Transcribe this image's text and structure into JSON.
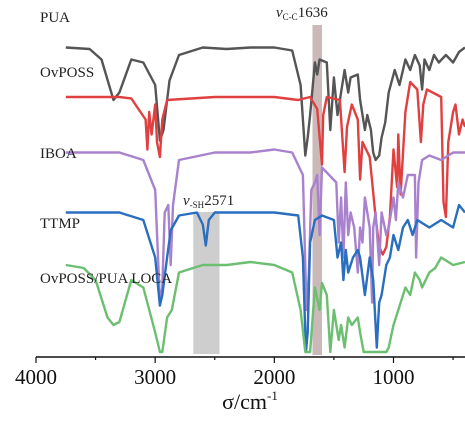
{
  "chart_data": {
    "type": "line",
    "x_axis": {
      "label_symbol": "σ",
      "label_unit": "/cm",
      "label_exponent": "-1",
      "range": [
        4000,
        400
      ],
      "reversed": true,
      "ticks": [
        "4000",
        "3000",
        "2000",
        "1000"
      ],
      "tick_values": [
        4000,
        3000,
        2000,
        1000
      ]
    },
    "y_axis": {
      "visible": false
    },
    "grid": false,
    "stacked": true,
    "series": [
      {
        "name": "PUA",
        "color": "#555555",
        "baseline": 0.95,
        "points": [
          [
            3750,
            0.0
          ],
          [
            3550,
            -0.01
          ],
          [
            3450,
            -0.08
          ],
          [
            3350,
            -0.35
          ],
          [
            3300,
            -0.3
          ],
          [
            3200,
            -0.08
          ],
          [
            3100,
            -0.1
          ],
          [
            3000,
            -0.25
          ],
          [
            2960,
            -0.62
          ],
          [
            2930,
            -0.55
          ],
          [
            2880,
            -0.22
          ],
          [
            2800,
            -0.05
          ],
          [
            2600,
            0.0
          ],
          [
            2400,
            -0.01
          ],
          [
            2200,
            0.0
          ],
          [
            2000,
            0.0
          ],
          [
            1850,
            -0.02
          ],
          [
            1780,
            -0.25
          ],
          [
            1740,
            -0.72
          ],
          [
            1720,
            -0.6
          ],
          [
            1700,
            -0.45
          ],
          [
            1660,
            -0.1
          ],
          [
            1640,
            -0.18
          ],
          [
            1620,
            -0.08
          ],
          [
            1560,
            -0.1
          ],
          [
            1530,
            -0.55
          ],
          [
            1500,
            -0.2
          ],
          [
            1470,
            -0.45
          ],
          [
            1450,
            -0.35
          ],
          [
            1410,
            -0.15
          ],
          [
            1380,
            -0.3
          ],
          [
            1360,
            -0.2
          ],
          [
            1300,
            -0.18
          ],
          [
            1280,
            -0.35
          ],
          [
            1240,
            -0.55
          ],
          [
            1220,
            -0.45
          ],
          [
            1190,
            -0.55
          ],
          [
            1170,
            -0.7
          ],
          [
            1150,
            -0.75
          ],
          [
            1120,
            -0.72
          ],
          [
            1100,
            -0.6
          ],
          [
            1070,
            -0.5
          ],
          [
            1040,
            -0.3
          ],
          [
            990,
            -0.15
          ],
          [
            950,
            -0.25
          ],
          [
            900,
            -0.08
          ],
          [
            860,
            -0.15
          ],
          [
            820,
            -0.05
          ],
          [
            780,
            -0.12
          ],
          [
            760,
            -0.28
          ],
          [
            740,
            -0.08
          ],
          [
            700,
            -0.15
          ],
          [
            660,
            -0.05
          ],
          [
            620,
            -0.1
          ],
          [
            560,
            -0.05
          ],
          [
            500,
            -0.1
          ],
          [
            450,
            -0.03
          ],
          [
            400,
            0.0
          ]
        ]
      },
      {
        "name": "OvPOSS",
        "color": "#e04040",
        "baseline": 0.62,
        "points": [
          [
            3750,
            0.0
          ],
          [
            3300,
            0.0
          ],
          [
            3200,
            -0.01
          ],
          [
            3080,
            -0.15
          ],
          [
            3065,
            -0.35
          ],
          [
            3050,
            -0.1
          ],
          [
            3030,
            -0.25
          ],
          [
            3000,
            -0.05
          ],
          [
            2985,
            -0.3
          ],
          [
            2960,
            -0.4
          ],
          [
            2940,
            -0.15
          ],
          [
            2900,
            -0.02
          ],
          [
            2500,
            0.0
          ],
          [
            2000,
            0.0
          ],
          [
            1800,
            -0.02
          ],
          [
            1700,
            0.0
          ],
          [
            1640,
            -0.08
          ],
          [
            1600,
            -0.45
          ],
          [
            1590,
            -0.12
          ],
          [
            1560,
            0.0
          ],
          [
            1450,
            -0.02
          ],
          [
            1410,
            -0.5
          ],
          [
            1390,
            -0.2
          ],
          [
            1350,
            -0.05
          ],
          [
            1300,
            -0.15
          ],
          [
            1280,
            -0.55
          ],
          [
            1260,
            -0.3
          ],
          [
            1200,
            -0.4
          ],
          [
            1150,
            -0.8
          ],
          [
            1120,
            -1.0
          ],
          [
            1090,
            -1.05
          ],
          [
            1060,
            -1.0
          ],
          [
            1030,
            -0.8
          ],
          [
            1000,
            -0.35
          ],
          [
            970,
            -0.6
          ],
          [
            960,
            -0.25
          ],
          [
            940,
            -0.65
          ],
          [
            900,
            -0.1
          ],
          [
            860,
            0.1
          ],
          [
            800,
            0.05
          ],
          [
            770,
            -0.3
          ],
          [
            750,
            -0.05
          ],
          [
            720,
            0.05
          ],
          [
            600,
            0.0
          ],
          [
            580,
            -0.7
          ],
          [
            560,
            -0.8
          ],
          [
            540,
            -0.3
          ],
          [
            500,
            -0.1
          ],
          [
            480,
            -0.05
          ],
          [
            450,
            -0.25
          ],
          [
            420,
            -0.15
          ],
          [
            400,
            -0.2
          ]
        ]
      },
      {
        "name": "IBOA",
        "color": "#a882cc",
        "baseline": 0.25,
        "points": [
          [
            3750,
            0.0
          ],
          [
            3300,
            0.0
          ],
          [
            3100,
            -0.05
          ],
          [
            3000,
            -0.25
          ],
          [
            2960,
            -1.0
          ],
          [
            2940,
            -0.9
          ],
          [
            2920,
            -0.4
          ],
          [
            2890,
            -0.35
          ],
          [
            2870,
            -0.75
          ],
          [
            2850,
            -0.35
          ],
          [
            2800,
            -0.05
          ],
          [
            2500,
            0.0
          ],
          [
            2200,
            0.0
          ],
          [
            2000,
            0.02
          ],
          [
            1850,
            0.0
          ],
          [
            1760,
            -0.15
          ],
          [
            1730,
            -1.05
          ],
          [
            1710,
            -0.8
          ],
          [
            1690,
            -0.25
          ],
          [
            1660,
            -0.2
          ],
          [
            1640,
            -0.15
          ],
          [
            1620,
            -0.55
          ],
          [
            1600,
            -0.1
          ],
          [
            1480,
            -0.2
          ],
          [
            1460,
            -0.6
          ],
          [
            1440,
            -0.3
          ],
          [
            1420,
            -0.7
          ],
          [
            1400,
            -0.2
          ],
          [
            1380,
            -0.55
          ],
          [
            1360,
            -0.4
          ],
          [
            1330,
            -0.5
          ],
          [
            1300,
            -0.8
          ],
          [
            1280,
            -0.5
          ],
          [
            1260,
            -0.6
          ],
          [
            1240,
            -0.3
          ],
          [
            1200,
            -0.5
          ],
          [
            1180,
            -1.0
          ],
          [
            1170,
            -0.5
          ],
          [
            1150,
            -0.4
          ],
          [
            1120,
            -0.75
          ],
          [
            1100,
            -0.4
          ],
          [
            1060,
            -0.55
          ],
          [
            1040,
            -0.5
          ],
          [
            1000,
            -0.3
          ],
          [
            980,
            -0.45
          ],
          [
            960,
            -0.2
          ],
          [
            920,
            -0.3
          ],
          [
            880,
            -0.15
          ],
          [
            820,
            -0.15
          ],
          [
            810,
            -0.7
          ],
          [
            790,
            -0.2
          ],
          [
            760,
            -0.05
          ],
          [
            700,
            -0.02
          ],
          [
            600,
            -0.05
          ],
          [
            500,
            0.0
          ],
          [
            400,
            0.0
          ]
        ]
      },
      {
        "name": "TTMP",
        "color": "#2a6ebf",
        "baseline": -0.15,
        "points": [
          [
            3750,
            0.0
          ],
          [
            3300,
            0.0
          ],
          [
            3100,
            -0.05
          ],
          [
            3000,
            -0.3
          ],
          [
            2960,
            -0.62
          ],
          [
            2940,
            -0.55
          ],
          [
            2900,
            -0.3
          ],
          [
            2870,
            -0.12
          ],
          [
            2800,
            -0.02
          ],
          [
            2650,
            0.0
          ],
          [
            2600,
            -0.08
          ],
          [
            2575,
            -0.22
          ],
          [
            2550,
            -0.05
          ],
          [
            2500,
            0.0
          ],
          [
            2200,
            0.0
          ],
          [
            2000,
            0.0
          ],
          [
            1800,
            -0.02
          ],
          [
            1760,
            -0.3
          ],
          [
            1735,
            -1.1
          ],
          [
            1720,
            -0.8
          ],
          [
            1700,
            -0.2
          ],
          [
            1660,
            -0.05
          ],
          [
            1600,
            -0.02
          ],
          [
            1500,
            -0.05
          ],
          [
            1470,
            -0.3
          ],
          [
            1440,
            -0.2
          ],
          [
            1420,
            -0.45
          ],
          [
            1400,
            -0.25
          ],
          [
            1380,
            -0.4
          ],
          [
            1340,
            -0.3
          ],
          [
            1300,
            -0.25
          ],
          [
            1280,
            -0.3
          ],
          [
            1240,
            -0.55
          ],
          [
            1200,
            -0.3
          ],
          [
            1170,
            -0.45
          ],
          [
            1140,
            -0.9
          ],
          [
            1120,
            -0.6
          ],
          [
            1100,
            -0.55
          ],
          [
            1060,
            -0.35
          ],
          [
            1030,
            -0.3
          ],
          [
            1000,
            -0.15
          ],
          [
            960,
            -0.25
          ],
          [
            920,
            -0.1
          ],
          [
            880,
            -0.05
          ],
          [
            840,
            -0.15
          ],
          [
            800,
            -0.05
          ],
          [
            700,
            -0.1
          ],
          [
            600,
            -0.05
          ],
          [
            500,
            -0.1
          ],
          [
            450,
            0.05
          ],
          [
            400,
            0.0
          ]
        ]
      },
      {
        "name": "OvPOSS/PUA LOCA",
        "color": "#6cbf70",
        "baseline": -0.5,
        "points": [
          [
            3750,
            0.0
          ],
          [
            3600,
            -0.02
          ],
          [
            3500,
            -0.1
          ],
          [
            3400,
            -0.35
          ],
          [
            3350,
            -0.4
          ],
          [
            3300,
            -0.38
          ],
          [
            3200,
            -0.1
          ],
          [
            3100,
            -0.15
          ],
          [
            3000,
            -0.45
          ],
          [
            2960,
            -0.85
          ],
          [
            2940,
            -0.75
          ],
          [
            2900,
            -0.35
          ],
          [
            2860,
            -0.3
          ],
          [
            2800,
            -0.05
          ],
          [
            2600,
            0.0
          ],
          [
            2400,
            0.0
          ],
          [
            2200,
            0.02
          ],
          [
            2000,
            0.0
          ],
          [
            1850,
            -0.05
          ],
          [
            1780,
            -0.3
          ],
          [
            1740,
            -1.2
          ],
          [
            1720,
            -1.1
          ],
          [
            1700,
            -0.6
          ],
          [
            1660,
            -0.15
          ],
          [
            1620,
            -0.3
          ],
          [
            1600,
            -0.12
          ],
          [
            1560,
            -0.2
          ],
          [
            1530,
            -0.6
          ],
          [
            1500,
            -0.3
          ],
          [
            1460,
            -0.5
          ],
          [
            1440,
            -0.4
          ],
          [
            1410,
            -0.55
          ],
          [
            1380,
            -0.35
          ],
          [
            1350,
            -0.4
          ],
          [
            1300,
            -0.35
          ],
          [
            1280,
            -0.45
          ],
          [
            1250,
            -0.65
          ],
          [
            1220,
            -0.6
          ],
          [
            1190,
            -0.7
          ],
          [
            1160,
            -0.8
          ],
          [
            1140,
            -0.85
          ],
          [
            1110,
            -0.75
          ],
          [
            1090,
            -0.8
          ],
          [
            1060,
            -0.7
          ],
          [
            1040,
            -0.55
          ],
          [
            1000,
            -0.4
          ],
          [
            960,
            -0.3
          ],
          [
            900,
            -0.15
          ],
          [
            860,
            -0.2
          ],
          [
            820,
            -0.05
          ],
          [
            780,
            -0.1
          ],
          [
            760,
            -0.15
          ],
          [
            700,
            -0.05
          ],
          [
            650,
            -0.02
          ],
          [
            600,
            0.05
          ],
          [
            500,
            0.0
          ],
          [
            400,
            0.02
          ]
        ]
      }
    ],
    "annotations": [
      {
        "kind": "band",
        "x_start": 1680,
        "x_end": 1600,
        "color": "#c2adad",
        "label_main": "v",
        "label_sub": "C-C",
        "label_value": "1636"
      },
      {
        "kind": "band",
        "x_start": 2680,
        "x_end": 2460,
        "color": "#c6c6c6",
        "label_main": "v",
        "label_sub": "-SH",
        "label_value": "2571"
      }
    ]
  }
}
